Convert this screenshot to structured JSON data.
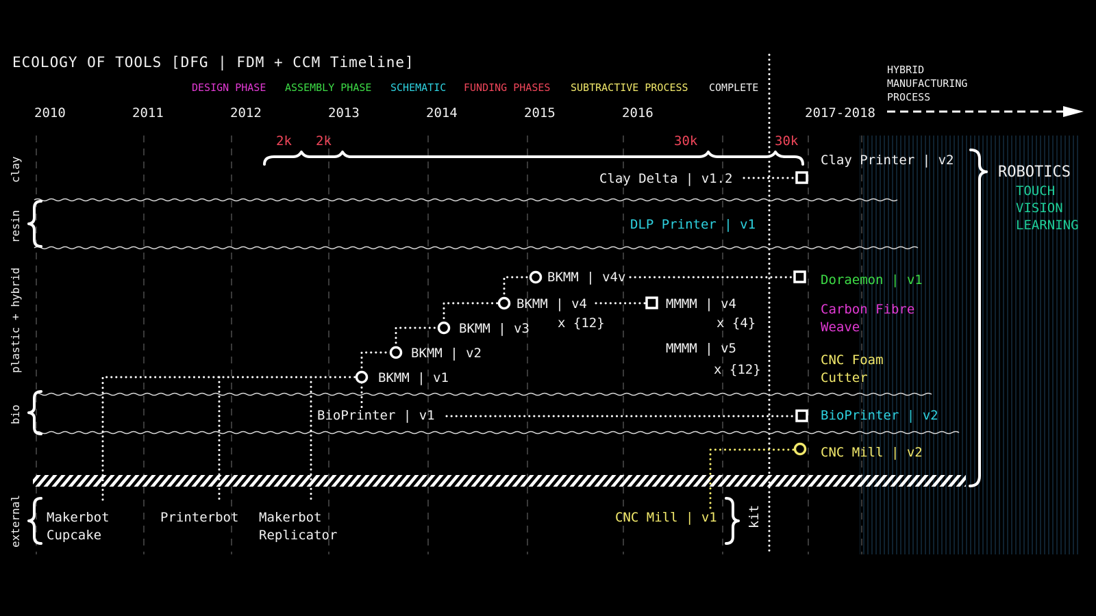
{
  "title": "ECOLOGY OF TOOLS  [DFG | FDM + CCM  Timeline]",
  "legend": [
    {
      "label": "DESIGN PHASE",
      "color": "#e23ad4"
    },
    {
      "label": "ASSEMBLY PHASE",
      "color": "#3ddc46"
    },
    {
      "label": "SCHEMATIC",
      "color": "#2ed2e0"
    },
    {
      "label": "FUNDING PHASES",
      "color": "#f0465a"
    },
    {
      "label": "SUBTRACTIVE PROCESS",
      "color": "#f2e96b"
    },
    {
      "label": "COMPLETE",
      "color": "#f2f2f2"
    }
  ],
  "hybrid_label": [
    "HYBRID",
    "MANUFACTURING",
    "PROCESS"
  ],
  "years": [
    "2010",
    "2011",
    "2012",
    "2013",
    "2014",
    "2015",
    "2016",
    "2017-2018"
  ],
  "funding": [
    "2k",
    "2k",
    "30k",
    "30k"
  ],
  "categories": [
    "clay",
    "resin",
    "plastic + hybrid",
    "bio",
    "external"
  ],
  "nodes": {
    "clay_delta": "Clay Delta | v1.2",
    "clay_printer": "Clay Printer | v2",
    "dlp_printer": "DLP Printer | v1",
    "bkmm_v4v": "BKMM | v4v",
    "bkmm_v4": "BKMM | v4",
    "bkmm_v4_mult": "x {12}",
    "mmmm_v4": "MMMM | v4",
    "mmmm_v4_mult": "x {4}",
    "bkmm_v3": "BKMM | v3",
    "bkmm_v2": "BKMM | v2",
    "bkmm_v1": "BKMM | v1",
    "mmmm_v5": "MMMM | v5",
    "mmmm_v5_mult": "x {12}",
    "doraemon": "Doraemon | v1",
    "carbon_fibre": [
      "Carbon Fibre",
      "Weave"
    ],
    "cnc_foam": [
      "CNC Foam",
      "Cutter"
    ],
    "bioprinter_v1": "BioPrinter | v1",
    "bioprinter_v2": "BioPrinter | v2",
    "cnc_mill_v2": "CNC Mill | v2",
    "cnc_mill_v1": "CNC Mill | v1",
    "kit": "kit",
    "makerbot_cupcake": [
      "Makerbot",
      "Cupcake"
    ],
    "printerbot": "Printerbot",
    "makerbot_replicator": [
      "Makerbot",
      "Replicator"
    ]
  },
  "robotics": {
    "title": "ROBOTICS",
    "items": [
      "TOUCH",
      "VISION",
      "LEARNING"
    ]
  },
  "colors": {
    "background": "#000000",
    "text": "#f2f2f2",
    "assembly": "#3ddc46",
    "design": "#e23ad4",
    "schematic": "#2ed2e0",
    "funding": "#f0465a",
    "subtractive": "#f2e96b",
    "robotics_sub": "#1fcf9a"
  }
}
